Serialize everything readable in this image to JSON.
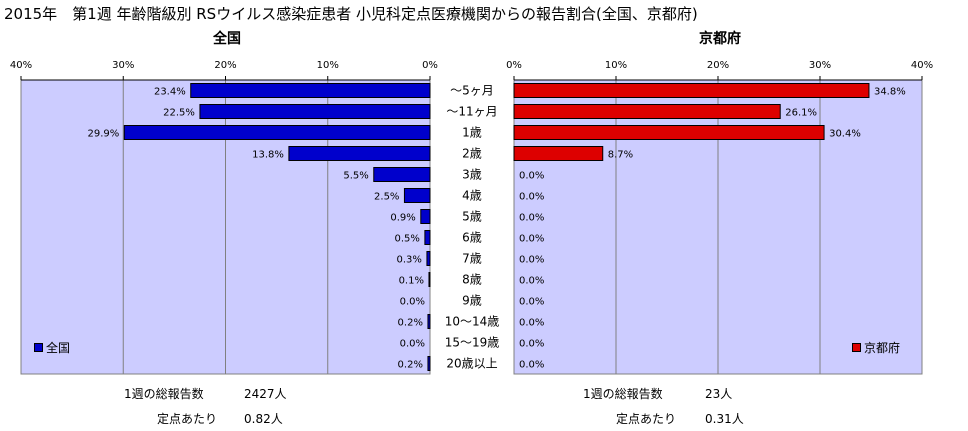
{
  "title": "2015年　第1週 年齢階級別 RSウイルス感染症患者 小児科定点医療機関からの報告割合(全国、京都府)",
  "colors": {
    "national": "#0000cc",
    "kyoto": "#dd0000",
    "plot_bg": "#ccccff"
  },
  "chart_data": [
    {
      "type": "bar",
      "orientation": "horizontal",
      "title": "全国",
      "categories": [
        "～5ヶ月",
        "～11ヶ月",
        "1歳",
        "2歳",
        "3歳",
        "4歳",
        "5歳",
        "6歳",
        "7歳",
        "8歳",
        "9歳",
        "10～14歳",
        "15～19歳",
        "20歳以上"
      ],
      "series": [
        {
          "name": "全国",
          "values": [
            23.4,
            22.5,
            29.9,
            13.8,
            5.5,
            2.5,
            0.9,
            0.5,
            0.3,
            0.1,
            0.0,
            0.2,
            0.0,
            0.2
          ]
        }
      ],
      "value_labels": [
        "23.4%",
        "22.5%",
        "29.9%",
        "13.8%",
        "5.5%",
        "2.5%",
        "0.9%",
        "0.5%",
        "0.3%",
        "0.1%",
        "0.0%",
        "0.2%",
        "0.0%",
        "0.2%"
      ],
      "xlim": [
        0,
        40
      ],
      "xticks": [
        "40%",
        "30%",
        "20%",
        "10%",
        "0%"
      ],
      "x_reversed": true,
      "grid": true,
      "legend": "bottom-left"
    },
    {
      "type": "bar",
      "orientation": "horizontal",
      "title": "京都府",
      "categories": [
        "～5ヶ月",
        "～11ヶ月",
        "1歳",
        "2歳",
        "3歳",
        "4歳",
        "5歳",
        "6歳",
        "7歳",
        "8歳",
        "9歳",
        "10～14歳",
        "15～19歳",
        "20歳以上"
      ],
      "series": [
        {
          "name": "京都府",
          "values": [
            34.8,
            26.1,
            30.4,
            8.7,
            0,
            0,
            0,
            0,
            0,
            0,
            0,
            0,
            0,
            0
          ]
        }
      ],
      "value_labels": [
        "34.8%",
        "26.1%",
        "30.4%",
        "8.7%",
        "0.0%",
        "0.0%",
        "0.0%",
        "0.0%",
        "0.0%",
        "0.0%",
        "0.0%",
        "0.0%",
        "0.0%",
        "0.0%"
      ],
      "xlim": [
        0,
        40
      ],
      "xticks": [
        "0%",
        "10%",
        "20%",
        "30%",
        "40%"
      ],
      "grid": true,
      "legend": "bottom-right"
    }
  ],
  "footer": {
    "national": {
      "total_label": "1週の総報告数",
      "total_value": "2427人",
      "per_label": "定点あたり",
      "per_value": "0.82人"
    },
    "kyoto": {
      "total_label": "1週の総報告数",
      "total_value": "23人",
      "per_label": "定点あたり",
      "per_value": "0.31人"
    }
  }
}
